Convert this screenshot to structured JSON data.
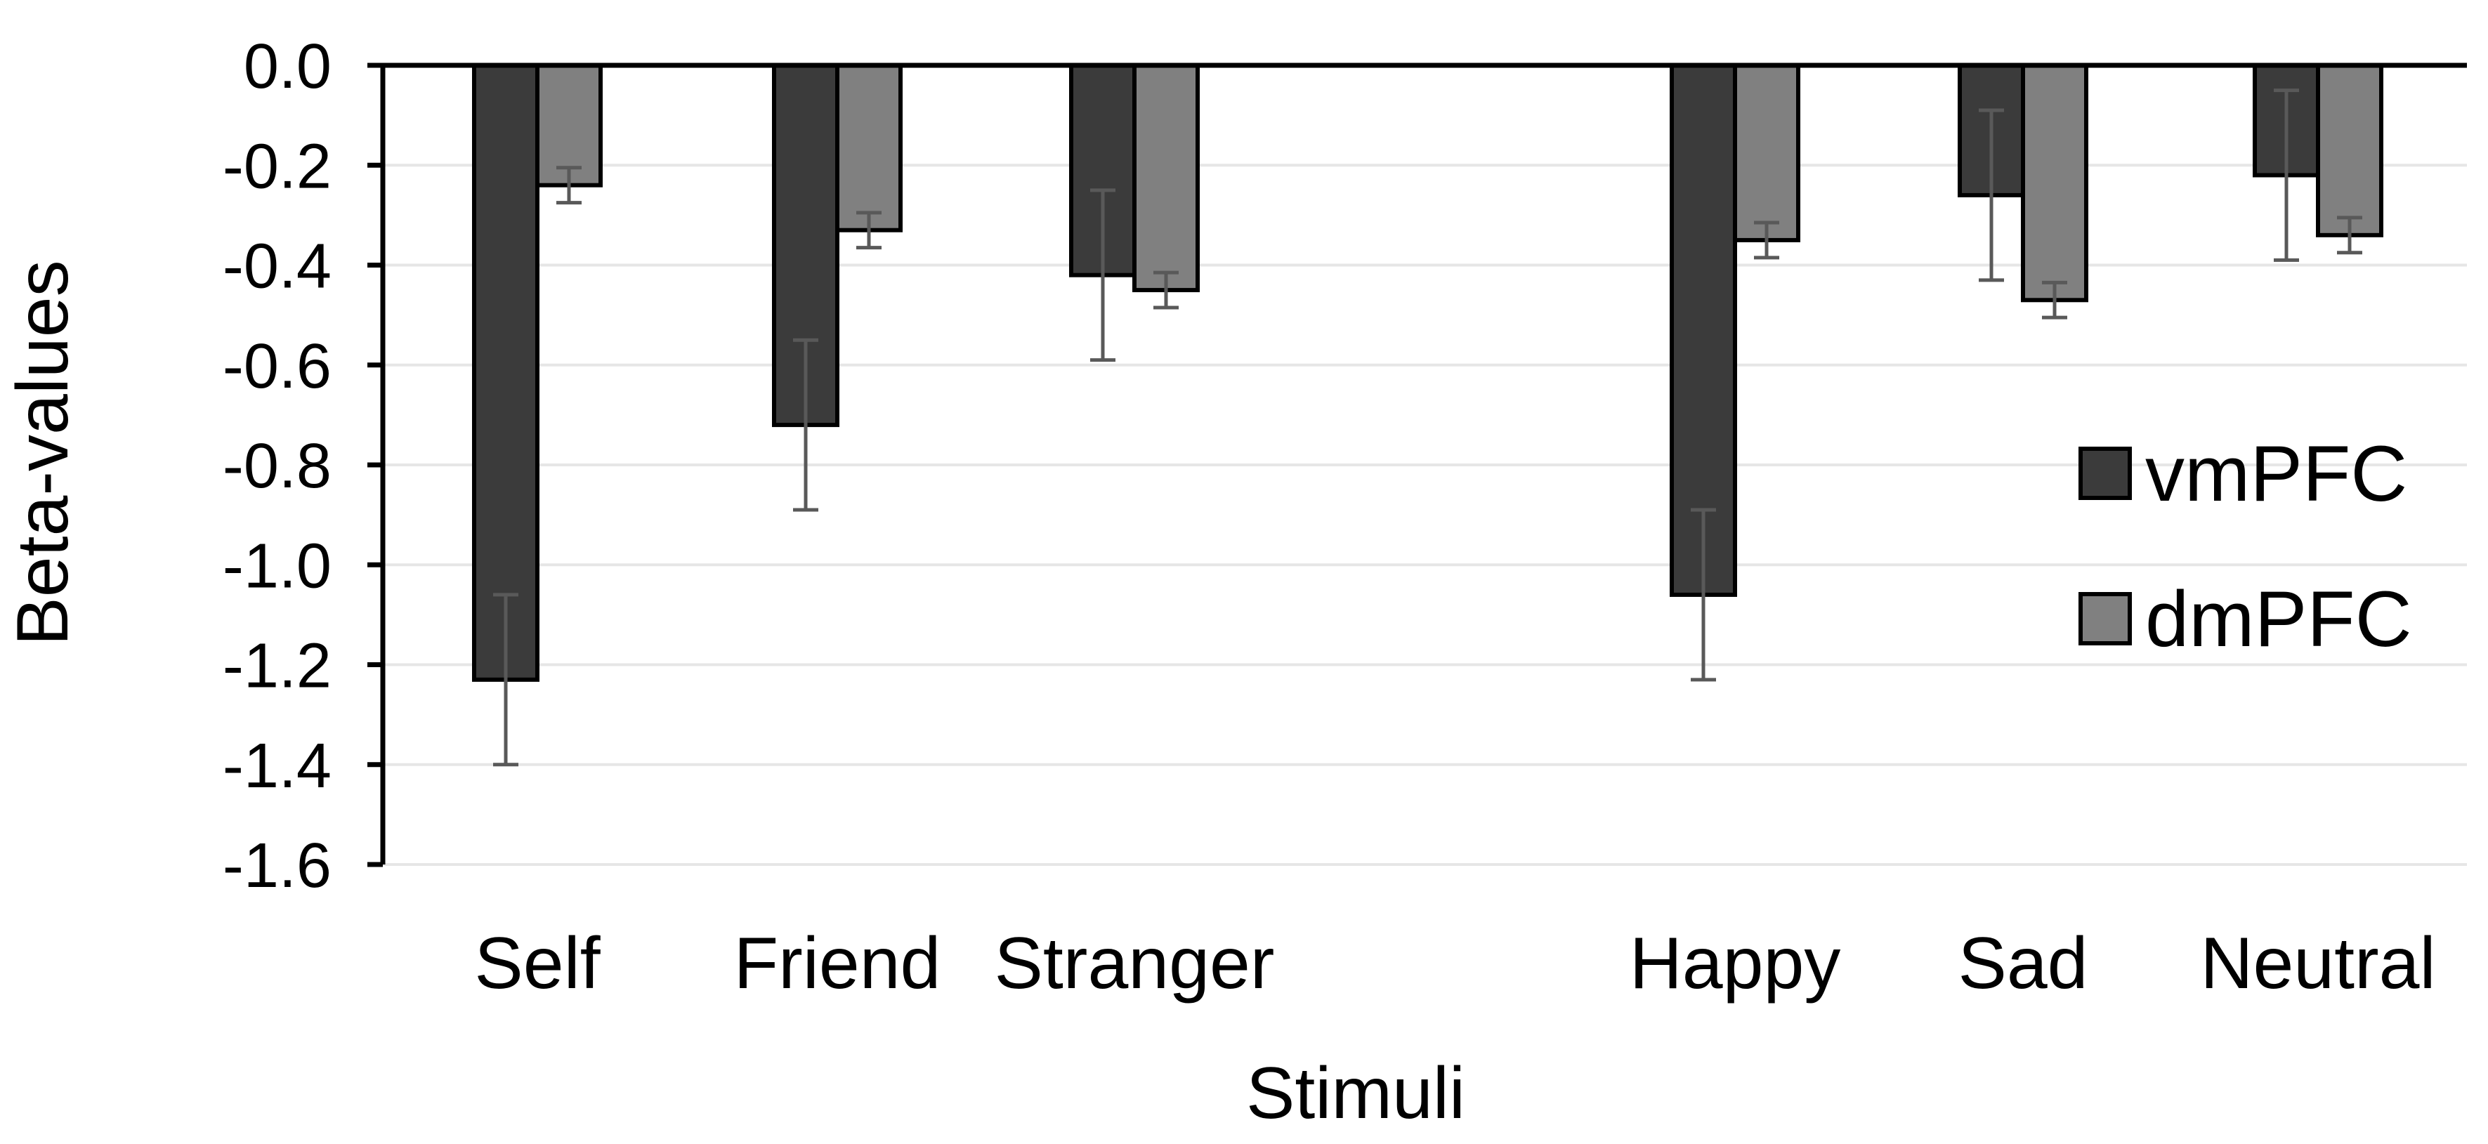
{
  "chart_data": {
    "type": "bar",
    "title": "",
    "xlabel": "Stimuli",
    "ylabel": "Beta-values",
    "ylim": [
      -1.6,
      0.0
    ],
    "yticks": [
      "0.0",
      "-0.2",
      "-0.4",
      "-0.6",
      "-0.8",
      "-1.0",
      "-1.2",
      "-1.4",
      "-1.6"
    ],
    "grid": true,
    "legend_position": "right",
    "categories": [
      "Self",
      "Friend",
      "Stranger",
      "",
      "Happy",
      "Sad",
      "Neutral"
    ],
    "series": [
      {
        "name": "vmPFC",
        "color": "#3b3b3b",
        "values": [
          -1.23,
          -0.72,
          -0.42,
          null,
          -1.06,
          -0.26,
          -0.22
        ],
        "errors": [
          0.17,
          0.17,
          0.17,
          null,
          0.17,
          0.17,
          0.17
        ]
      },
      {
        "name": "dmPFC",
        "color": "#808080",
        "values": [
          -0.24,
          -0.33,
          -0.45,
          null,
          -0.35,
          -0.47,
          -0.34
        ],
        "errors": [
          0.035,
          0.035,
          0.035,
          null,
          0.035,
          0.035,
          0.035
        ]
      }
    ],
    "colors": {
      "axis": "#000000",
      "grid": "#e6e6e6",
      "error_bar": "#595959",
      "bar_outline": "#000000"
    }
  }
}
